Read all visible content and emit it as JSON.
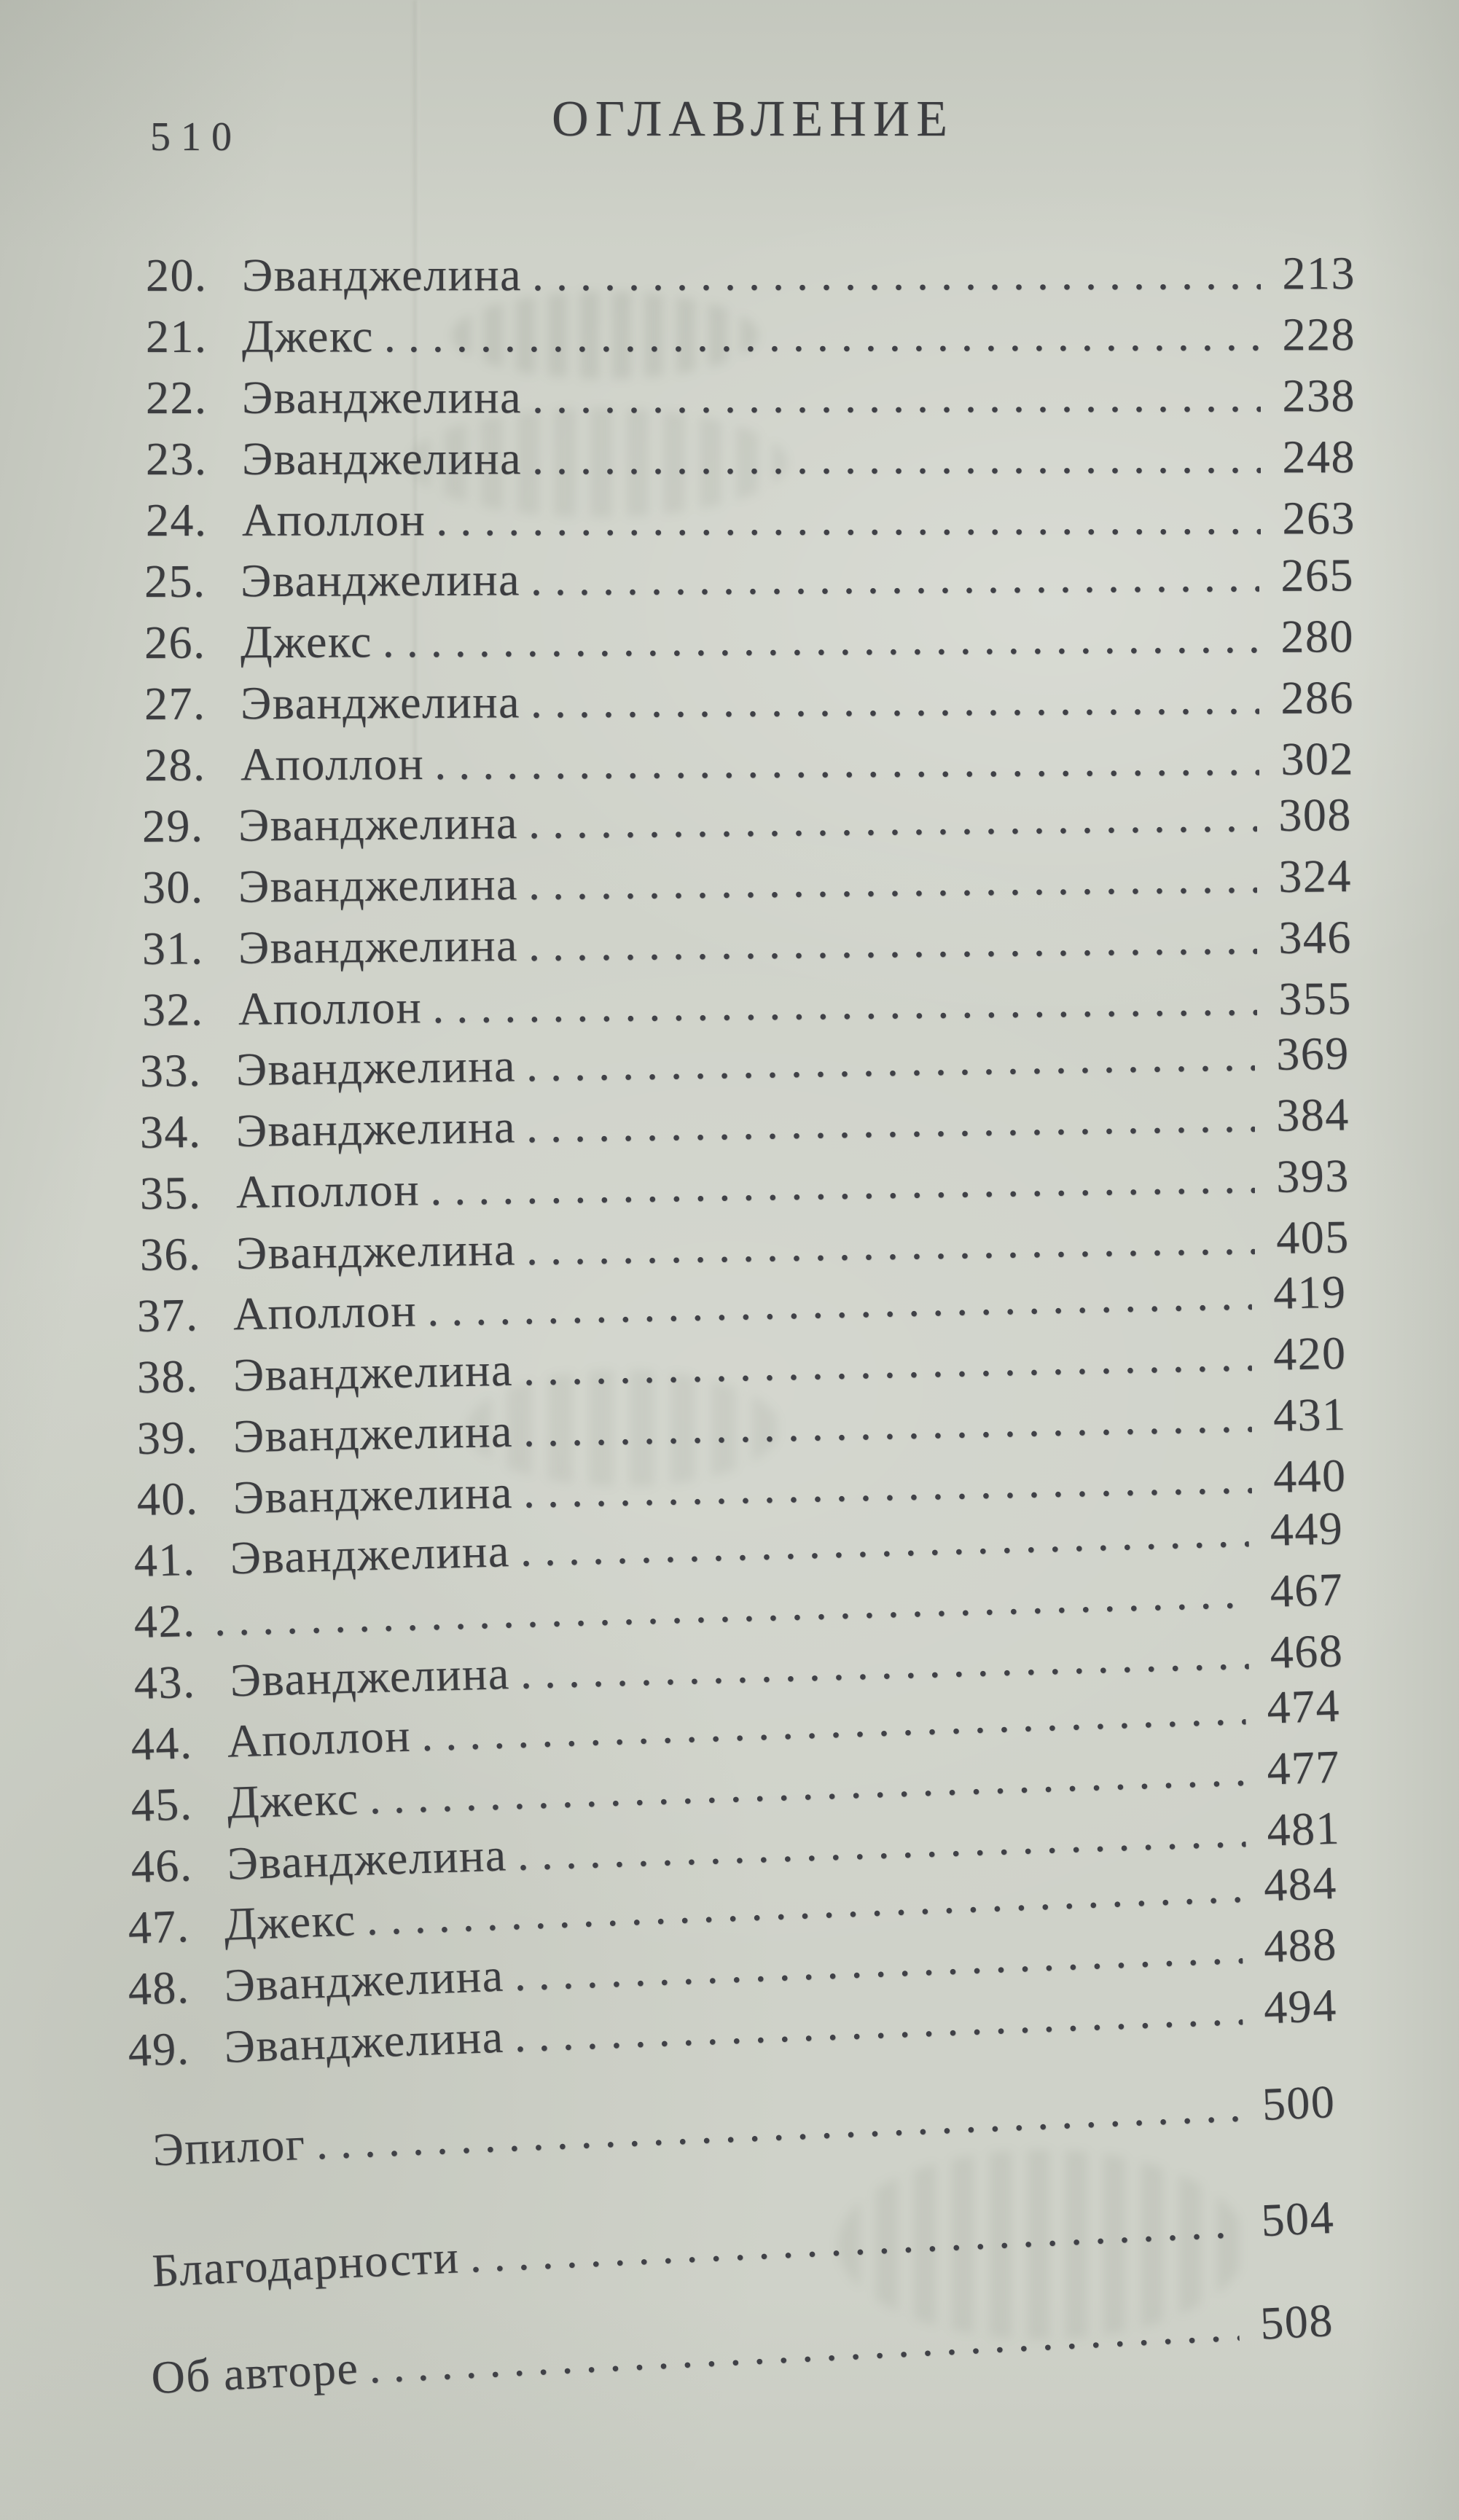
{
  "page": {
    "number": "510",
    "title": "ОГЛАВЛЕНИЕ"
  },
  "toc": {
    "entries": [
      {
        "num": "20.",
        "name": "Эванджелина",
        "page": "213"
      },
      {
        "num": "21.",
        "name": "Джекс",
        "page": "228"
      },
      {
        "num": "22.",
        "name": "Эванджелина",
        "page": "238"
      },
      {
        "num": "23.",
        "name": "Эванджелина",
        "page": "248"
      },
      {
        "num": "24.",
        "name": "Аполлон",
        "page": "263"
      },
      {
        "num": "25.",
        "name": "Эванджелина",
        "page": "265"
      },
      {
        "num": "26.",
        "name": "Джекс",
        "page": "280"
      },
      {
        "num": "27.",
        "name": "Эванджелина",
        "page": "286"
      },
      {
        "num": "28.",
        "name": "Аполлон",
        "page": "302"
      },
      {
        "num": "29.",
        "name": "Эванджелина",
        "page": "308"
      },
      {
        "num": "30.",
        "name": "Эванджелина",
        "page": "324"
      },
      {
        "num": "31.",
        "name": "Эванджелина",
        "page": "346"
      },
      {
        "num": "32.",
        "name": "Аполлон",
        "page": "355"
      },
      {
        "num": "33.",
        "name": "Эванджелина",
        "page": "369"
      },
      {
        "num": "34.",
        "name": "Эванджелина",
        "page": "384"
      },
      {
        "num": "35.",
        "name": "Аполлон",
        "page": "393"
      },
      {
        "num": "36.",
        "name": "Эванджелина",
        "page": "405"
      },
      {
        "num": "37.",
        "name": "Аполлон",
        "page": "419"
      },
      {
        "num": "38.",
        "name": "Эванджелина",
        "page": "420"
      },
      {
        "num": "39.",
        "name": "Эванджелина",
        "page": "431"
      },
      {
        "num": "40.",
        "name": "Эванджелина",
        "page": "440"
      },
      {
        "num": "41.",
        "name": "Эванджелина",
        "page": "449"
      },
      {
        "num": "42.",
        "name": "",
        "page": "467"
      },
      {
        "num": "43.",
        "name": "Эванджелина",
        "page": "468"
      },
      {
        "num": "44.",
        "name": "Аполлон",
        "page": "474"
      },
      {
        "num": "45.",
        "name": "Джекс",
        "page": "477"
      },
      {
        "num": "46.",
        "name": "Эванджелина",
        "page": "481"
      },
      {
        "num": "47.",
        "name": "Джекс",
        "page": "484"
      },
      {
        "num": "48.",
        "name": "Эванджелина",
        "page": "488"
      },
      {
        "num": "49.",
        "name": "Эванджелина",
        "page": "494"
      }
    ],
    "back_matter": [
      {
        "name": "Эпилог",
        "page": "500"
      },
      {
        "name": "Благодарности",
        "page": "504"
      },
      {
        "name": "Об авторе",
        "page": "508"
      }
    ]
  }
}
